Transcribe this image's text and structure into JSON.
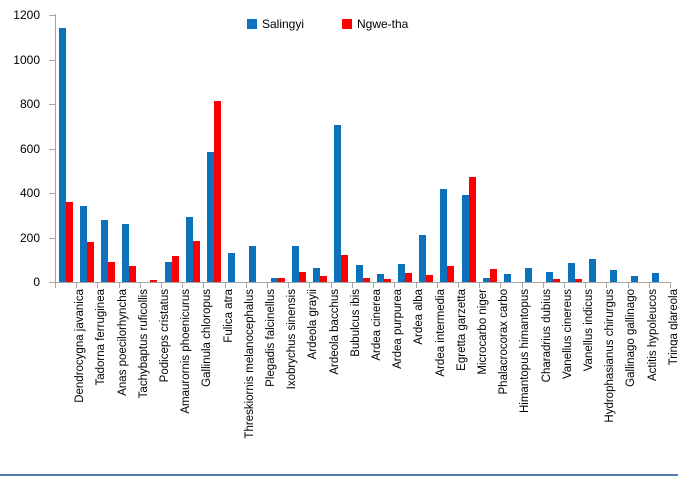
{
  "chart_data": {
    "type": "bar",
    "title": "",
    "xlabel": "",
    "ylabel": "",
    "categories": [
      "Dendrocygna javanica",
      "Tadorna ferruginea",
      "Anas poecilorhyncha",
      "Tachybaptus ruficollis",
      "Podiceps cristatus",
      "Amaurornis phoenicurus",
      "Gallinula chloropus",
      "Fulica atra",
      "Threskiornis melanocephalus",
      "Plegadis falcinellus",
      "Ixobrychus sinensis",
      "Ardeola grayii",
      "Ardeola bacchus",
      "Bubulcus ibis",
      "Ardea cinerea",
      "Ardea purpurea",
      "Ardea alba",
      "Ardea intermedia",
      "Egretta garzetta",
      "Microcarbo niger",
      "Phalacrocorax carbo",
      "Himantopus himantopus",
      "Charadrius dubius",
      "Vanellus cinereus",
      "Vanellus indicus",
      "Hydrophasianus chirurgus",
      "Gallinago gallinago",
      "Actitis hypoleucos",
      "Tringa glareola"
    ],
    "series": [
      {
        "name": "Salingyi",
        "color": "#0D72BD",
        "values": [
          1140,
          340,
          280,
          260,
          0,
          90,
          290,
          585,
          130,
          160,
          20,
          160,
          65,
          705,
          75,
          35,
          80,
          210,
          420,
          390,
          20,
          35,
          65,
          45,
          85,
          105,
          55,
          25,
          40
        ]
      },
      {
        "name": "Ngwe-tha",
        "color": "#FB0000",
        "values": [
          360,
          180,
          90,
          70,
          10,
          115,
          185,
          815,
          0,
          0,
          20,
          45,
          25,
          120,
          20,
          15,
          40,
          30,
          70,
          470,
          60,
          0,
          0,
          15,
          15,
          0,
          0,
          0,
          0
        ]
      }
    ],
    "ylim": [
      0,
      1200
    ],
    "yticks": [
      0,
      200,
      400,
      600,
      800,
      1000,
      1200
    ],
    "grid": false,
    "legend_position": "top-center",
    "axis_color": "#A6A6A6",
    "text_color": "#000000"
  },
  "window": {
    "bottom_border_color": "#5079B3"
  }
}
